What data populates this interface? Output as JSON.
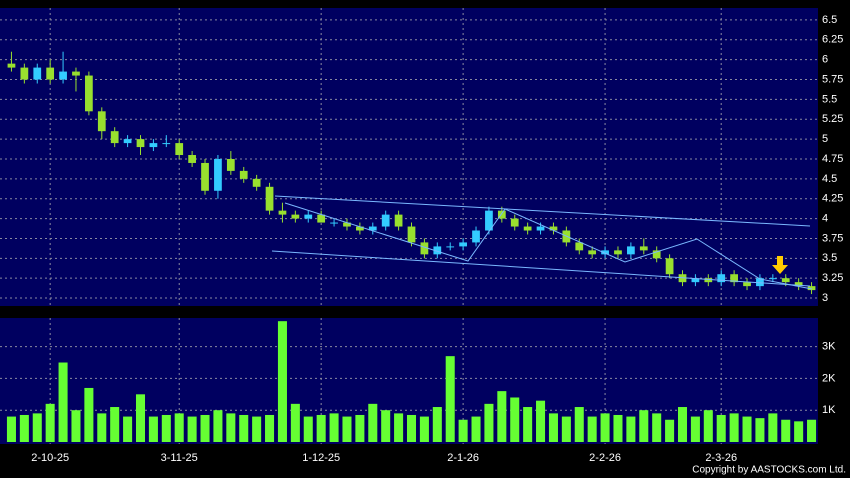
{
  "chart_data": [
    {
      "type": "candlestick",
      "categories": [
        null,
        null,
        null,
        "2-10-25",
        null,
        null,
        null,
        null,
        null,
        null,
        null,
        null,
        null,
        "3-11-25",
        null,
        null,
        null,
        null,
        null,
        null,
        null,
        null,
        null,
        null,
        "1-12-25",
        null,
        null,
        null,
        null,
        null,
        null,
        null,
        null,
        null,
        null,
        "2-1-26",
        null,
        null,
        null,
        null,
        null,
        null,
        null,
        null,
        null,
        null,
        "2-2-26",
        null,
        null,
        null,
        null,
        null,
        null,
        null,
        null,
        "2-3-26",
        null,
        null,
        null,
        null,
        null,
        null,
        null
      ],
      "ohlc": [
        [
          5.95,
          6.1,
          5.85,
          5.9
        ],
        [
          5.9,
          5.95,
          5.7,
          5.75
        ],
        [
          5.75,
          5.95,
          5.7,
          5.9
        ],
        [
          5.9,
          6.0,
          5.7,
          5.75
        ],
        [
          5.75,
          6.1,
          5.7,
          5.85
        ],
        [
          5.85,
          5.9,
          5.6,
          5.8
        ],
        [
          5.8,
          5.85,
          5.3,
          5.35
        ],
        [
          5.35,
          5.4,
          5.0,
          5.1
        ],
        [
          5.1,
          5.15,
          4.9,
          4.95
        ],
        [
          4.95,
          5.05,
          4.9,
          5.0
        ],
        [
          5.0,
          5.05,
          4.8,
          4.9
        ],
        [
          4.9,
          5.0,
          4.85,
          4.95
        ],
        [
          4.95,
          5.05,
          4.9,
          4.95
        ],
        [
          4.95,
          5.0,
          4.75,
          4.8
        ],
        [
          4.8,
          4.85,
          4.65,
          4.7
        ],
        [
          4.7,
          4.75,
          4.3,
          4.35
        ],
        [
          4.35,
          4.8,
          4.25,
          4.75
        ],
        [
          4.75,
          4.85,
          4.55,
          4.6
        ],
        [
          4.6,
          4.65,
          4.45,
          4.5
        ],
        [
          4.5,
          4.55,
          4.35,
          4.4
        ],
        [
          4.4,
          4.45,
          4.05,
          4.1
        ],
        [
          4.1,
          4.2,
          3.95,
          4.05
        ],
        [
          4.05,
          4.1,
          3.95,
          4.0
        ],
        [
          4.0,
          4.1,
          3.95,
          4.05
        ],
        [
          4.05,
          4.1,
          3.95,
          3.95
        ],
        [
          3.95,
          4.0,
          3.9,
          3.95
        ],
        [
          3.95,
          4.0,
          3.85,
          3.9
        ],
        [
          3.9,
          3.95,
          3.8,
          3.85
        ],
        [
          3.85,
          3.95,
          3.8,
          3.9
        ],
        [
          3.9,
          4.1,
          3.85,
          4.05
        ],
        [
          4.05,
          4.1,
          3.85,
          3.9
        ],
        [
          3.9,
          3.95,
          3.65,
          3.7
        ],
        [
          3.7,
          3.75,
          3.5,
          3.55
        ],
        [
          3.55,
          3.7,
          3.5,
          3.65
        ],
        [
          3.65,
          3.7,
          3.6,
          3.65
        ],
        [
          3.65,
          3.75,
          3.6,
          3.7
        ],
        [
          3.7,
          3.9,
          3.65,
          3.85
        ],
        [
          3.85,
          4.15,
          3.8,
          4.1
        ],
        [
          4.1,
          4.15,
          3.95,
          4.0
        ],
        [
          4.0,
          4.05,
          3.85,
          3.9
        ],
        [
          3.9,
          3.95,
          3.8,
          3.85
        ],
        [
          3.85,
          3.95,
          3.8,
          3.9
        ],
        [
          3.9,
          3.95,
          3.8,
          3.85
        ],
        [
          3.85,
          3.9,
          3.65,
          3.7
        ],
        [
          3.7,
          3.75,
          3.55,
          3.6
        ],
        [
          3.6,
          3.65,
          3.5,
          3.55
        ],
        [
          3.55,
          3.65,
          3.5,
          3.6
        ],
        [
          3.6,
          3.65,
          3.5,
          3.55
        ],
        [
          3.55,
          3.7,
          3.5,
          3.65
        ],
        [
          3.65,
          3.75,
          3.55,
          3.6
        ],
        [
          3.6,
          3.65,
          3.45,
          3.5
        ],
        [
          3.5,
          3.55,
          3.25,
          3.3
        ],
        [
          3.3,
          3.35,
          3.15,
          3.2
        ],
        [
          3.2,
          3.3,
          3.15,
          3.25
        ],
        [
          3.25,
          3.3,
          3.15,
          3.2
        ],
        [
          3.2,
          3.35,
          3.15,
          3.3
        ],
        [
          3.3,
          3.35,
          3.15,
          3.2
        ],
        [
          3.2,
          3.25,
          3.1,
          3.15
        ],
        [
          3.15,
          3.3,
          3.1,
          3.25
        ],
        [
          3.25,
          3.3,
          3.2,
          3.25
        ],
        [
          3.25,
          3.3,
          3.15,
          3.2
        ],
        [
          3.2,
          3.25,
          3.1,
          3.15
        ],
        [
          3.15,
          3.2,
          3.05,
          3.1
        ]
      ],
      "up_color": "#33ccff",
      "down_color": "#99e02e",
      "ylim": [
        2.9,
        6.65
      ],
      "yticks": [
        3,
        3.25,
        3.5,
        3.75,
        4,
        4.25,
        4.5,
        4.75,
        5,
        5.25,
        5.5,
        5.75,
        6,
        6.25,
        6.5
      ],
      "grid": true
    },
    {
      "type": "bar",
      "values": [
        800,
        850,
        900,
        1200,
        2500,
        1000,
        1700,
        900,
        1100,
        800,
        1500,
        800,
        850,
        900,
        800,
        850,
        1000,
        900,
        850,
        800,
        850,
        3800,
        1200,
        800,
        850,
        900,
        800,
        850,
        1200,
        1000,
        900,
        850,
        800,
        1100,
        2700,
        700,
        800,
        1200,
        1600,
        1400,
        1100,
        1300,
        900,
        800,
        1100,
        800,
        900,
        850,
        800,
        1000,
        900,
        700,
        1100,
        800,
        1000,
        850,
        900,
        800,
        750,
        900,
        700,
        650,
        700
      ],
      "color": "#66ff33",
      "ylim": [
        0,
        3900
      ],
      "yticks": [
        {
          "value": 1000,
          "label": "1K"
        },
        {
          "value": 2000,
          "label": "2K"
        },
        {
          "value": 3000,
          "label": "3K"
        }
      ],
      "grid": true
    }
  ],
  "copyright": "Copyright by AASTOCKS.com Ltd."
}
